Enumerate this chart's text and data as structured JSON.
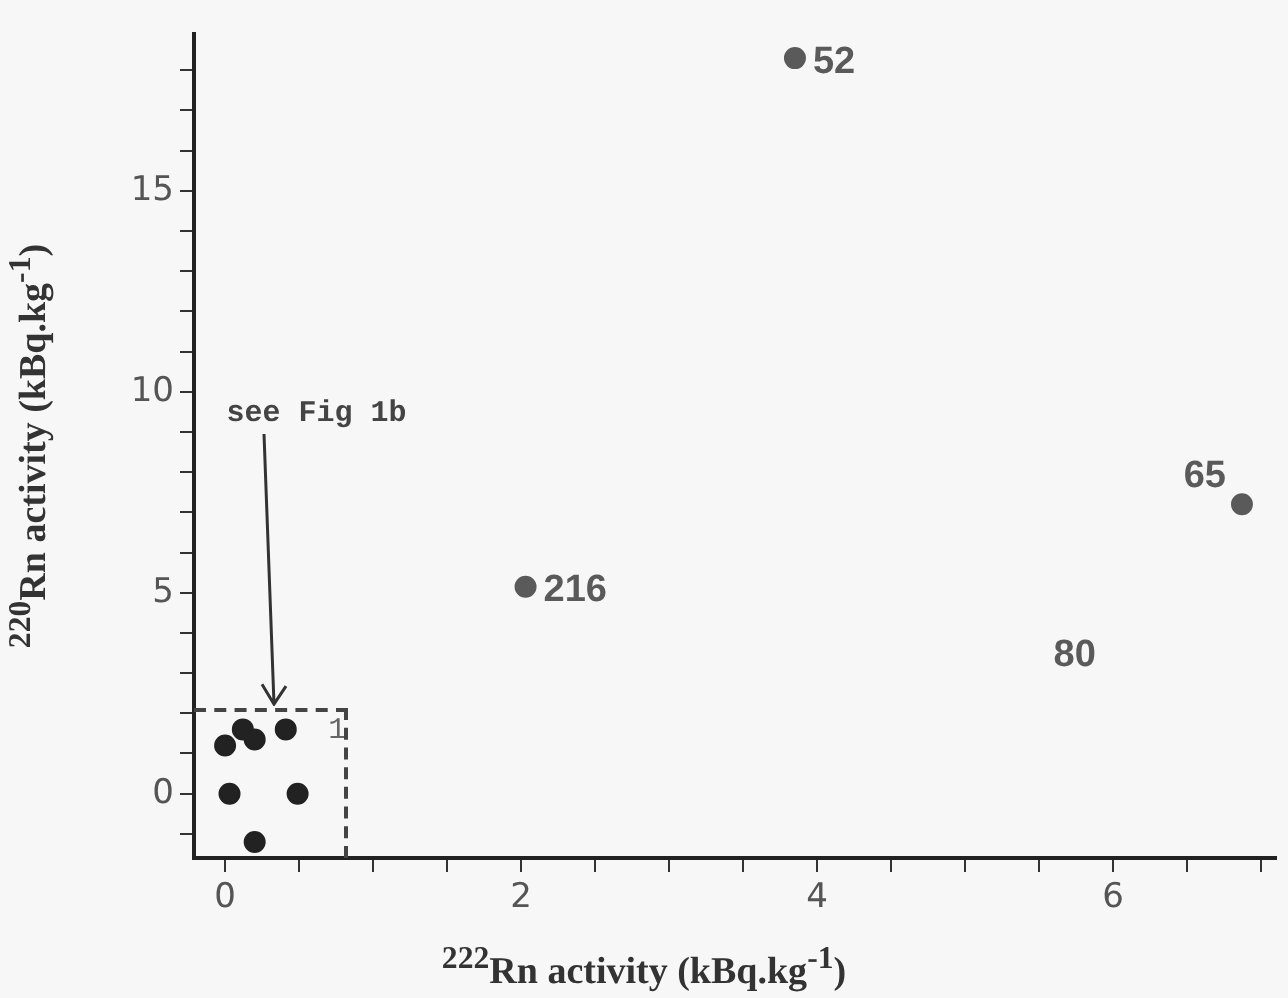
{
  "chart_data": {
    "type": "scatter",
    "xlabel": "$^{222}$Rn activity (kBq.kg$^{-1}$)",
    "ylabel": "$^{220}$Rn activity (kBq.kg$^{-1}$)",
    "x": [
      3.85,
      6.87,
      2.03,
      0.0,
      0.12,
      0.2,
      0.41,
      0.03,
      0.49,
      0.2
    ],
    "values": [
      18.3,
      7.2,
      5.15,
      1.2,
      1.6,
      1.35,
      1.6,
      0,
      0,
      -1.2
    ],
    "colors": [
      "#5a5a5a",
      "#5a5a5a",
      "#5a5a5a",
      "#222222",
      "#222222",
      "#222222",
      "#222222",
      "#222222",
      "#222222",
      "#222222"
    ],
    "marker": "circle",
    "grid": false,
    "legend": false,
    "xlim": [
      -0.21,
      7.1
    ],
    "ylim": [
      -1.6,
      18.9
    ],
    "xticks": [
      0,
      {
        "value": 0.5,
        "label": null
      },
      {
        "value": 1,
        "label": null
      },
      {
        "value": 1.5,
        "label": null
      },
      2,
      {
        "value": 2.5,
        "label": null
      },
      {
        "value": 3,
        "label": null
      },
      {
        "value": 3.5,
        "label": null
      },
      4,
      {
        "value": 4.5,
        "label": null
      },
      {
        "value": 5,
        "label": null
      },
      {
        "value": 5.5,
        "label": null
      },
      6,
      {
        "value": 6.5,
        "label": null
      },
      {
        "value": 7,
        "label": null
      }
    ],
    "yticks": [
      {
        "value": -1,
        "label": null
      },
      0,
      {
        "value": 1,
        "label": null
      },
      {
        "value": 2,
        "label": null
      },
      {
        "value": 3,
        "label": null
      },
      {
        "value": 4,
        "label": null
      },
      5,
      {
        "value": 6,
        "label": null
      },
      {
        "value": 7,
        "label": null
      },
      {
        "value": 8,
        "label": null
      },
      {
        "value": 9,
        "label": null
      },
      10,
      {
        "value": 11,
        "label": null
      },
      {
        "value": 12,
        "label": null
      },
      {
        "value": 13,
        "label": null
      },
      {
        "value": 14,
        "label": null
      },
      15,
      {
        "value": 16,
        "label": null
      },
      {
        "value": 17,
        "label": null
      },
      {
        "value": 18,
        "label": null
      }
    ],
    "annotations": [
      {
        "text": "52",
        "x": 3.85,
        "y": 18.3
      },
      {
        "text": "65",
        "x": 6.87,
        "y": 7.2
      },
      {
        "text": "216",
        "x": 2.03,
        "y": 5.15
      },
      "see Fig 1b",
      "1",
      "80"
    ]
  }
}
